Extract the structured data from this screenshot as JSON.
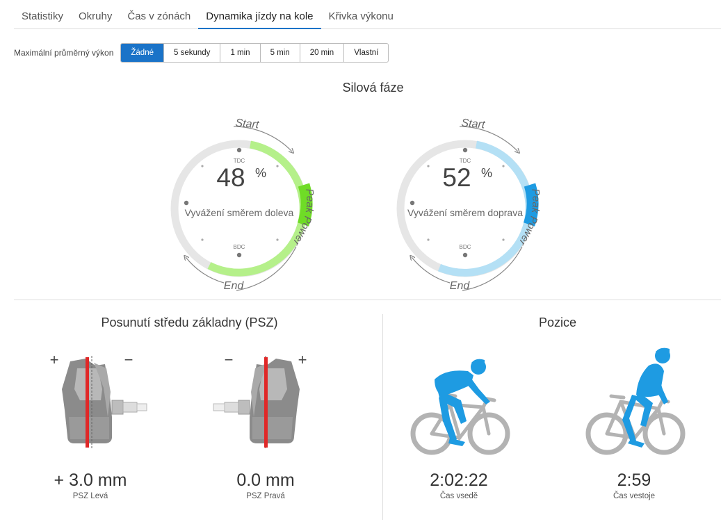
{
  "tabs": [
    {
      "label": "Statistiky",
      "active": false
    },
    {
      "label": "Okruhy",
      "active": false
    },
    {
      "label": "Čas v zónách",
      "active": false
    },
    {
      "label": "Dynamika jízdy na kole",
      "active": true
    },
    {
      "label": "Křivka výkonu",
      "active": false
    }
  ],
  "filter": {
    "label": "Maximální průměrný výkon",
    "options": [
      "Žádné",
      "5 sekundy",
      "1 min",
      "5 min",
      "20 min",
      "Vlastní"
    ],
    "selected": "Žádné"
  },
  "power_phase": {
    "title": "Silová fáze",
    "left": {
      "value": "48",
      "unit": "%",
      "caption": "Vyvážení směrem doleva",
      "start": "Start",
      "end": "End",
      "peak": "Peak Power",
      "tdc": "TDC",
      "bdc": "BDC",
      "color_light": "#b5f08a",
      "color_dark": "#6fdc26"
    },
    "right": {
      "value": "52",
      "unit": "%",
      "caption": "Vyvážení směrem doprava",
      "start": "Start",
      "end": "End",
      "peak": "Peak Power",
      "tdc": "TDC",
      "bdc": "BDC",
      "color_light": "#b4e0f5",
      "color_dark": "#1e9be2"
    }
  },
  "psz": {
    "title": "Posunutí středu základny (PSZ)",
    "left": {
      "value": "+ 3.0 mm",
      "label": "PSZ Levá",
      "plus": "+",
      "minus": "−"
    },
    "right": {
      "value": "0.0 mm",
      "label": "PSZ Pravá",
      "plus": "+",
      "minus": "−"
    }
  },
  "position": {
    "title": "Pozice",
    "seated": {
      "value": "2:02:22",
      "label": "Čas vsedě"
    },
    "standing": {
      "value": "2:59",
      "label": "Čas vestoje"
    },
    "rider_color": "#1e9be2",
    "bike_color": "#b3b3b3"
  }
}
